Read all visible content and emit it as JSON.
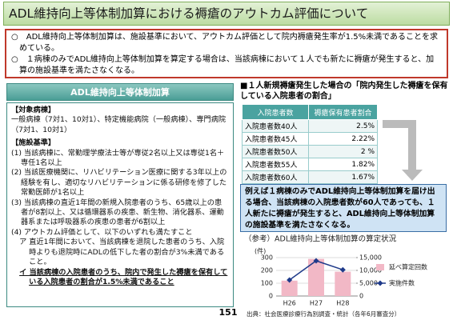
{
  "header": {
    "title": "ADL維持向上等体制加算における褥瘡のアウトカム評価について"
  },
  "summary": [
    "○　ADL維持向上等体制加算は、施設基準において、アウトカム評価として院内褥瘡発生率が1.5%未満であることを求めている。",
    "○　１病棟のみでADL維持向上等体制加算を算定する場合は、当該病棟において１人でも新たに褥瘡が発生すると、加算の施設基準を満たさなくなる。"
  ],
  "panel": {
    "header": "ADL維持向上等体制加算",
    "target_title": "【対象病棟】",
    "target_text": "一般病棟（7対1、10対1）、特定機能病院（一般病棟）、専門病院（7対1、10対1）",
    "criteria_title": "【施設基準】",
    "criteria": [
      "(1)  当該病棟に、常勤理学療法士等が専従2名以上又は専従1名＋専任1名以上",
      "(2)  当該医療機関に、リハビリテーション医療に関する3年以上の経験を有し、適切なリハビリテーションに係る研修を修了した常勤医師が1名以上",
      "(3)  当該病棟の直近1年間の新規入院患者のうち、65歳以上の患者が8割以上、又は循環器系の疾患、新生物、消化器系、運動器系または呼吸器系の疾患の患者が6割以上",
      "(4)  アウトカム評価として、以下のいずれも満たすこと"
    ],
    "sub": [
      "ア  直近1年間において、当該病棟を退院した患者のうち、入院時よりも退院時にADLの低下した者の割合が3%未満であること。",
      "イ  当該病棟の入院患者のうち、院内で発生した褥瘡を保有している入院患者の割合が1.5%未満であること"
    ]
  },
  "table": {
    "title": "■１人新規褥瘡発生した場合の「院内発生した褥瘡を保有している入院患者の割合」",
    "header": [
      "入院患者数",
      "褥瘡保有患者割合"
    ],
    "rows": [
      [
        "入院患者数40人",
        "2.5%"
      ],
      [
        "入院患者数45人",
        "2.22%"
      ],
      [
        "入院患者数50人",
        "2 %"
      ],
      [
        "入院患者数55人",
        "1.82%"
      ],
      [
        "入院患者数60人",
        "1.67%"
      ]
    ]
  },
  "note": "例えば１病棟のみでADL維持向上等体制加算を届け出る場合、当該病棟の入院患者数が60人であっても、１人新たに褥瘡が発生すると、ADL維持向上等体制加算の施設基準を満たさなくなる。",
  "page_number": "151",
  "chart_data": {
    "type": "combo",
    "title": "（参考）ADL維持向上等体制加算の算定状況",
    "y_unit": "(件)",
    "categories": [
      "H26",
      "H27",
      "H28"
    ],
    "series": [
      {
        "name": "延べ算定回数",
        "color": "#f2b8c6",
        "kind": "bar",
        "axis": "y2",
        "values": [
          6000,
          14500,
          9500
        ]
      },
      {
        "name": "実施件数",
        "color": "#1f3a8a",
        "kind": "line",
        "values": [
          125,
          275,
          205
        ]
      }
    ],
    "ylim": [
      0,
      300
    ],
    "yticks": [
      0,
      100,
      200,
      300
    ],
    "y2lim": [
      0,
      15000
    ],
    "y2ticks": [
      0,
      {
        "value": 5000,
        "label": "5,000"
      },
      {
        "value": 10000,
        "label": "10,000"
      },
      {
        "value": 15000,
        "label": "15,000"
      }
    ],
    "grid": true,
    "source": "出典：社会医療診療行為別調査・統計（各年6月審査分）"
  }
}
